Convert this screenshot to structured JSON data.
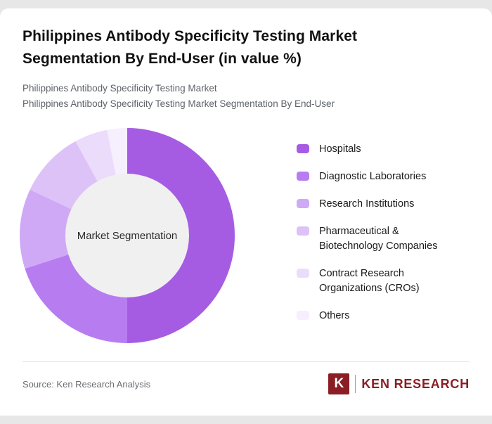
{
  "page": {
    "title": "Philippines Antibody Specificity Testing Market Segmentation By End-User (in value %)",
    "subtitle_line1": "Philippines Antibody Specificity Testing Market",
    "subtitle_line2": "Philippines Antibody Specificity Testing Market Segmentation By End-User"
  },
  "chart_data": {
    "type": "pie",
    "donut": true,
    "title": "Philippines Antibody Specificity Testing Market Segmentation By End-User (in value %)",
    "center_label": "Market Segmentation",
    "legend_position": "right",
    "unit": "value %",
    "segments": [
      {
        "label": "Hospitals",
        "value": 50,
        "color": "#a55ce3"
      },
      {
        "label": "Diagnostic Laboratories",
        "value": 20,
        "color": "#b77df0"
      },
      {
        "label": "Research Institutions",
        "value": 12,
        "color": "#cfa9f6"
      },
      {
        "label": "Pharmaceutical & Biotechnology Companies",
        "value": 10,
        "color": "#ddc2f8"
      },
      {
        "label": "Contract Research Organizations (CROs)",
        "value": 5,
        "color": "#ecdcfb"
      },
      {
        "label": "Others",
        "value": 3,
        "color": "#f6effe"
      }
    ]
  },
  "footer": {
    "source": "Source: Ken Research Analysis",
    "logo": {
      "k": "K",
      "text": "KEN RESEARCH",
      "color": "#8a1e24"
    }
  }
}
